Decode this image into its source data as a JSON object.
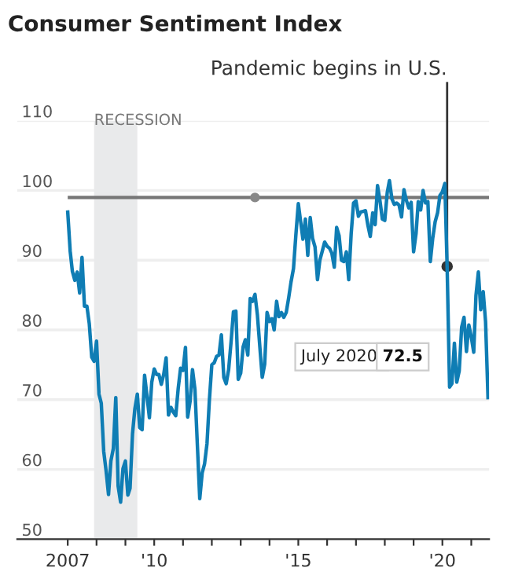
{
  "chart_data": {
    "type": "line",
    "title": "Consumer Sentiment Index",
    "x": [
      "2007-01",
      "2007-02",
      "2007-03",
      "2007-04",
      "2007-05",
      "2007-06",
      "2007-07",
      "2007-08",
      "2007-09",
      "2007-10",
      "2007-11",
      "2007-12",
      "2008-01",
      "2008-02",
      "2008-03",
      "2008-04",
      "2008-05",
      "2008-06",
      "2008-07",
      "2008-08",
      "2008-09",
      "2008-10",
      "2008-11",
      "2008-12",
      "2009-01",
      "2009-02",
      "2009-03",
      "2009-04",
      "2009-05",
      "2009-06",
      "2009-07",
      "2009-08",
      "2009-09",
      "2009-10",
      "2009-11",
      "2009-12",
      "2010-01",
      "2010-02",
      "2010-03",
      "2010-04",
      "2010-05",
      "2010-06",
      "2010-07",
      "2010-08",
      "2010-09",
      "2010-10",
      "2010-11",
      "2010-12",
      "2011-01",
      "2011-02",
      "2011-03",
      "2011-04",
      "2011-05",
      "2011-06",
      "2011-07",
      "2011-08",
      "2011-09",
      "2011-10",
      "2011-11",
      "2011-12",
      "2012-01",
      "2012-02",
      "2012-03",
      "2012-04",
      "2012-05",
      "2012-06",
      "2012-07",
      "2012-08",
      "2012-09",
      "2012-10",
      "2012-11",
      "2012-12",
      "2013-01",
      "2013-02",
      "2013-03",
      "2013-04",
      "2013-05",
      "2013-06",
      "2013-07",
      "2013-08",
      "2013-09",
      "2013-10",
      "2013-11",
      "2013-12",
      "2014-01",
      "2014-02",
      "2014-03",
      "2014-04",
      "2014-05",
      "2014-06",
      "2014-07",
      "2014-08",
      "2014-09",
      "2014-10",
      "2014-11",
      "2014-12",
      "2015-01",
      "2015-02",
      "2015-03",
      "2015-04",
      "2015-05",
      "2015-06",
      "2015-07",
      "2015-08",
      "2015-09",
      "2015-10",
      "2015-11",
      "2015-12",
      "2016-01",
      "2016-02",
      "2016-03",
      "2016-04",
      "2016-05",
      "2016-06",
      "2016-07",
      "2016-08",
      "2016-09",
      "2016-10",
      "2016-11",
      "2016-12",
      "2017-01",
      "2017-02",
      "2017-03",
      "2017-04",
      "2017-05",
      "2017-06",
      "2017-07",
      "2017-08",
      "2017-09",
      "2017-10",
      "2017-11",
      "2017-12",
      "2018-01",
      "2018-02",
      "2018-03",
      "2018-04",
      "2018-05",
      "2018-06",
      "2018-07",
      "2018-08",
      "2018-09",
      "2018-10",
      "2018-11",
      "2018-12",
      "2019-01",
      "2019-02",
      "2019-03",
      "2019-04",
      "2019-05",
      "2019-06",
      "2019-07",
      "2019-08",
      "2019-09",
      "2019-10",
      "2019-11",
      "2019-12",
      "2020-01",
      "2020-02",
      "2020-03",
      "2020-04",
      "2020-05",
      "2020-06",
      "2020-07",
      "2020-08",
      "2020-09",
      "2020-10",
      "2020-11",
      "2020-12",
      "2021-01",
      "2021-02",
      "2021-03",
      "2021-04",
      "2021-05",
      "2021-06",
      "2021-07",
      "2021-08"
    ],
    "series": [
      {
        "color": "#0f7db4",
        "values": [
          96.9,
          91.3,
          88.4,
          87.1,
          88.3,
          85.3,
          90.4,
          83.4,
          83.4,
          80.9,
          76.1,
          75.5,
          78.4,
          70.8,
          69.5,
          62.6,
          59.8,
          56.4,
          61.2,
          63.0,
          70.3,
          57.6,
          55.3,
          60.1,
          61.2,
          56.3,
          57.3,
          65.1,
          68.7,
          70.8,
          66.0,
          65.7,
          73.5,
          70.6,
          67.4,
          72.5,
          74.4,
          73.6,
          73.6,
          72.2,
          73.6,
          76.0,
          67.8,
          68.9,
          68.2,
          67.7,
          71.6,
          74.5,
          74.2,
          77.5,
          67.5,
          69.8,
          74.3,
          71.5,
          63.7,
          55.8,
          59.5,
          60.8,
          63.7,
          69.9,
          75.0,
          75.3,
          76.2,
          76.4,
          79.3,
          73.2,
          72.3,
          74.3,
          78.3,
          82.6,
          82.7,
          72.9,
          73.8,
          77.6,
          78.6,
          76.4,
          84.5,
          84.1,
          85.1,
          82.1,
          77.5,
          73.2,
          75.1,
          82.5,
          81.2,
          81.6,
          80.0,
          84.1,
          81.9,
          82.5,
          81.8,
          82.5,
          84.6,
          86.9,
          88.8,
          93.6,
          98.1,
          95.4,
          93.0,
          95.9,
          90.7,
          96.1,
          93.1,
          91.9,
          87.2,
          90.0,
          91.3,
          92.6,
          92.0,
          91.7,
          91.0,
          89.0,
          94.7,
          93.5,
          90.0,
          89.8,
          91.2,
          87.2,
          93.8,
          98.2,
          98.5,
          96.3,
          96.9,
          97.0,
          97.1,
          95.0,
          93.4,
          96.8,
          95.1,
          100.7,
          98.5,
          95.9,
          95.7,
          99.7,
          101.4,
          98.8,
          98.0,
          98.2,
          97.9,
          96.2,
          100.1,
          98.6,
          97.5,
          98.3,
          91.2,
          93.8,
          98.4,
          97.2,
          100.0,
          98.2,
          98.4,
          89.8,
          93.2,
          95.5,
          96.8,
          99.3,
          99.8,
          101.0,
          89.1,
          71.8,
          72.3,
          78.1,
          72.5,
          74.1,
          80.4,
          81.8,
          76.9,
          80.7,
          79.0,
          76.8,
          84.9,
          88.3,
          82.9,
          85.5,
          81.2,
          70.3
        ]
      },
      {
        "type": "scatter",
        "x": [
          "2013-07"
        ],
        "color": "#888888",
        "marker": "circle",
        "values": [
          99
        ]
      }
    ],
    "xlim": [
      "2005-04-01",
      "2021-08-15"
    ],
    "xticks": [
      {
        "value": "2007",
        "label": "2007"
      },
      {
        "value": "2008",
        "label": null
      },
      {
        "value": "2009",
        "label": null
      },
      {
        "value": "2010",
        "label": "'10"
      },
      {
        "value": "2011",
        "label": null
      },
      {
        "value": "2012",
        "label": null
      },
      {
        "value": "2013",
        "label": null
      },
      {
        "value": "2014",
        "label": null
      },
      {
        "value": "2015",
        "label": "'15"
      },
      {
        "value": "2016",
        "label": null
      },
      {
        "value": "2017",
        "label": null
      },
      {
        "value": "2018",
        "label": null
      },
      {
        "value": "2019",
        "label": null
      },
      {
        "value": "2020",
        "label": "'20"
      },
      {
        "value": "2021",
        "label": null
      }
    ],
    "ylim": [
      50,
      110
    ],
    "yticks": [
      50,
      60,
      70,
      80,
      90,
      100,
      110
    ],
    "grid": "y",
    "legend": false,
    "line_style": "solid",
    "ref_lines": [
      {
        "axis": "y",
        "value": 99,
        "color": "#777777"
      },
      {
        "axis": "x",
        "value": "2020-03",
        "label": "Pandemic begins in U.S.",
        "color": "#333333"
      }
    ],
    "bands": [
      {
        "axis": "x",
        "from": "2007-12",
        "to": "2009-06",
        "label": "RECESSION",
        "color": "#e9eaeb"
      }
    ],
    "annotations": [
      {
        "text": "July 2020 72.5",
        "x": "2020-07",
        "y": 72.5
      }
    ]
  }
}
